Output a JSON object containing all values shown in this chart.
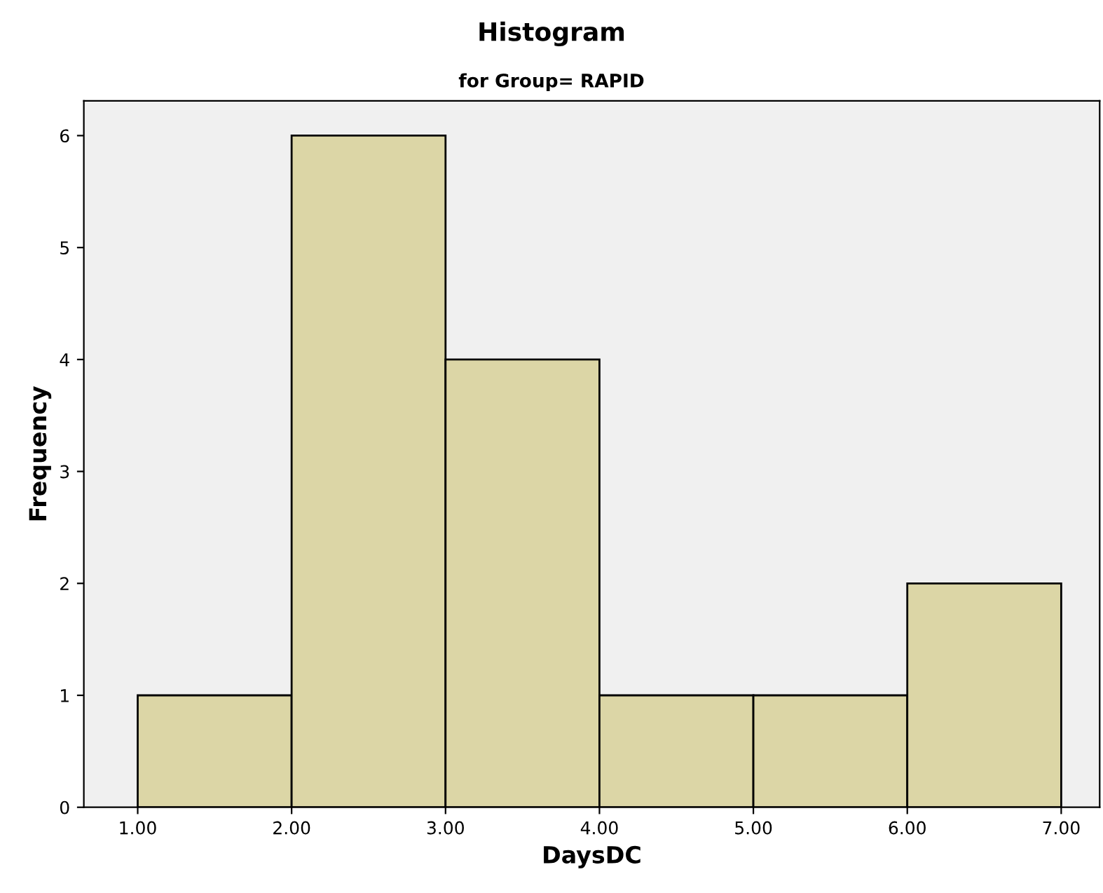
{
  "chart_data": {
    "type": "histogram",
    "title": "Histogram",
    "subtitle": "for Group= RAPID",
    "xlabel": "DaysDC",
    "ylabel": "Frequency",
    "bins": [
      1,
      2,
      3,
      4,
      5,
      6,
      7
    ],
    "values": [
      1,
      6,
      4,
      1,
      1,
      2
    ],
    "color": "#dcd6a6",
    "xlim": [
      0.65,
      7.25
    ],
    "ylim": [
      0,
      6.31
    ],
    "xticks": [
      {
        "value": 1,
        "label": "1.00"
      },
      {
        "value": 2,
        "label": "2.00"
      },
      {
        "value": 3,
        "label": "3.00"
      },
      {
        "value": 4,
        "label": "4.00"
      },
      {
        "value": 5,
        "label": "5.00"
      },
      {
        "value": 6,
        "label": "6.00"
      },
      {
        "value": 7,
        "label": "7.00"
      }
    ],
    "yticks": [
      0,
      1,
      2,
      3,
      4,
      5,
      6
    ],
    "grid": false
  }
}
